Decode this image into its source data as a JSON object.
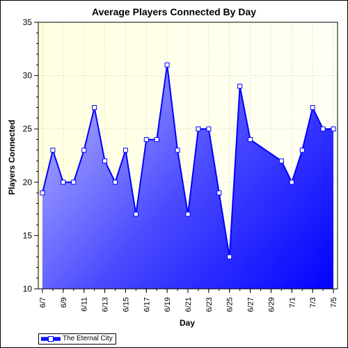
{
  "chart_data": {
    "type": "area",
    "title": "Average Players Connected By Day",
    "xlabel": "Day",
    "ylabel": "Players Connected",
    "ylim": [
      10,
      35
    ],
    "yticks": [
      10,
      15,
      20,
      25,
      30,
      35
    ],
    "xlim": [
      "6/7",
      "7/5"
    ],
    "xticks": [
      "6/7",
      "6/9",
      "6/11",
      "6/13",
      "6/15",
      "6/17",
      "6/19",
      "6/21",
      "6/23",
      "6/25",
      "6/27",
      "6/29",
      "7/1",
      "7/3",
      "7/5"
    ],
    "grid": true,
    "legend_position": "bottom-left",
    "series": [
      {
        "name": "The Eternal City",
        "color": "#0000ff",
        "points": [
          {
            "x": "6/7",
            "y": 19
          },
          {
            "x": "6/8",
            "y": 23
          },
          {
            "x": "6/9",
            "y": 20
          },
          {
            "x": "6/10",
            "y": 20
          },
          {
            "x": "6/11",
            "y": 23
          },
          {
            "x": "6/12",
            "y": 27
          },
          {
            "x": "6/13",
            "y": 22
          },
          {
            "x": "6/14",
            "y": 20
          },
          {
            "x": "6/15",
            "y": 23
          },
          {
            "x": "6/16",
            "y": 17
          },
          {
            "x": "6/17",
            "y": 24
          },
          {
            "x": "6/18",
            "y": 24
          },
          {
            "x": "6/19",
            "y": 31
          },
          {
            "x": "6/20",
            "y": 23
          },
          {
            "x": "6/21",
            "y": 17
          },
          {
            "x": "6/22",
            "y": 25
          },
          {
            "x": "6/23",
            "y": 25
          },
          {
            "x": "6/24",
            "y": 19
          },
          {
            "x": "6/25",
            "y": 13
          },
          {
            "x": "6/26",
            "y": 29
          },
          {
            "x": "6/27",
            "y": 24
          },
          {
            "x": "6/30",
            "y": 22
          },
          {
            "x": "7/1",
            "y": 20
          },
          {
            "x": "7/2",
            "y": 23
          },
          {
            "x": "7/3",
            "y": 27
          },
          {
            "x": "7/4",
            "y": 25
          },
          {
            "x": "7/5",
            "y": 25
          }
        ]
      }
    ]
  },
  "legend": {
    "label": "The Eternal City"
  }
}
